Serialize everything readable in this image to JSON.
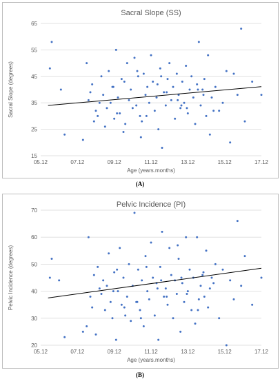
{
  "captions": {
    "a": "(A)",
    "b": "(B)"
  },
  "chart_data": [
    {
      "type": "scatter",
      "title": "Sacral Slope (SS)",
      "xlabel": "Age (years.months)",
      "ylabel": "Sacral Slope (degrees)",
      "x_ticks": [
        "05.12",
        "07.12",
        "09.12",
        "11.12",
        "13.12",
        "15.12",
        "17.12"
      ],
      "xlim": [
        5.0,
        17.0
      ],
      "y_ticks": [
        "15",
        "25",
        "35",
        "45",
        "55",
        "65"
      ],
      "ylim": [
        15,
        65
      ],
      "grid": "horizontal",
      "trendline": {
        "x": [
          5.4,
          17.0
        ],
        "y": [
          34.0,
          41.1
        ]
      },
      "marker_color": "#4472c4",
      "x": [
        5.5,
        5.6,
        6.1,
        6.3,
        7.3,
        7.5,
        7.6,
        7.7,
        7.8,
        7.9,
        8.0,
        8.1,
        8.3,
        8.4,
        8.5,
        8.6,
        8.7,
        8.8,
        8.9,
        9.0,
        9.1,
        9.2,
        9.3,
        9.4,
        9.5,
        9.6,
        9.7,
        9.8,
        9.9,
        10.0,
        10.1,
        10.2,
        10.3,
        10.4,
        10.5,
        10.6,
        10.7,
        10.8,
        10.9,
        11.0,
        11.1,
        11.2,
        11.3,
        11.4,
        11.5,
        11.6,
        11.7,
        11.8,
        11.9,
        12.0,
        12.1,
        12.2,
        12.3,
        12.4,
        12.5,
        12.6,
        12.7,
        12.8,
        12.9,
        13.0,
        13.1,
        13.2,
        13.3,
        13.4,
        13.5,
        13.6,
        13.7,
        13.8,
        13.9,
        14.0,
        14.1,
        14.2,
        14.3,
        14.5,
        14.7,
        14.9,
        15.1,
        15.3,
        15.5,
        15.7,
        15.9,
        16.1,
        16.5,
        17.0,
        8.2,
        9.15,
        10.25,
        11.35,
        12.45,
        13.55,
        14.4,
        9.55,
        10.75,
        11.85,
        12.65,
        8.95,
        10.45,
        11.55,
        12.95,
        13.85
      ],
      "y": [
        48,
        58,
        40,
        23,
        21,
        50,
        36,
        39,
        42,
        28,
        32,
        30,
        45,
        38,
        26,
        33,
        47,
        35,
        41,
        29,
        55,
        37,
        31,
        44,
        24,
        27,
        50,
        36,
        40,
        33,
        52,
        34,
        45,
        30,
        28,
        46,
        38,
        41,
        35,
        53,
        43,
        32,
        37,
        25,
        48,
        18,
        39,
        34,
        44,
        50,
        36,
        41,
        29,
        46,
        38,
        33,
        43,
        35,
        49,
        31,
        40,
        45,
        37,
        27,
        42,
        58,
        34,
        40,
        44,
        30,
        53,
        23,
        37,
        41,
        32,
        35,
        47,
        20,
        46,
        38,
        63,
        28,
        43,
        38,
        35,
        31,
        47,
        42,
        36,
        40,
        32,
        43,
        30,
        39,
        34,
        41,
        22,
        45,
        33,
        38
      ]
    },
    {
      "type": "scatter",
      "title": "Pelvic Incidence (PI)",
      "xlabel": "Age (years.months)",
      "ylabel": "Pelvic Incidence (degrees)",
      "x_ticks": [
        "05.12",
        "07.12",
        "09.12",
        "11.12",
        "13.12",
        "15.12",
        "17.12"
      ],
      "xlim": [
        5.0,
        17.0
      ],
      "y_ticks": [
        "20",
        "30",
        "40",
        "50",
        "60",
        "70"
      ],
      "ylim": [
        20,
        70
      ],
      "grid": "horizontal",
      "trendline": {
        "x": [
          5.4,
          17.0
        ],
        "y": [
          37.5,
          48.5
        ]
      },
      "marker_color": "#4472c4",
      "x": [
        5.5,
        5.6,
        6.0,
        6.3,
        7.3,
        7.5,
        7.6,
        7.7,
        7.8,
        7.9,
        8.0,
        8.1,
        8.3,
        8.4,
        8.5,
        8.6,
        8.7,
        8.8,
        8.9,
        9.0,
        9.1,
        9.2,
        9.3,
        9.4,
        9.5,
        9.6,
        9.7,
        9.8,
        9.9,
        10.0,
        10.1,
        10.2,
        10.3,
        10.4,
        10.5,
        10.6,
        10.7,
        10.8,
        10.9,
        11.0,
        11.1,
        11.2,
        11.3,
        11.4,
        11.5,
        11.6,
        11.7,
        11.8,
        11.9,
        12.0,
        12.1,
        12.2,
        12.3,
        12.4,
        12.5,
        12.6,
        12.7,
        12.8,
        12.9,
        13.0,
        13.1,
        13.2,
        13.3,
        13.4,
        13.5,
        13.6,
        13.7,
        13.8,
        13.9,
        14.0,
        14.1,
        14.2,
        14.3,
        14.5,
        14.7,
        14.9,
        15.1,
        15.3,
        15.5,
        15.7,
        15.9,
        16.1,
        16.5,
        17.0,
        8.2,
        9.15,
        10.25,
        11.35,
        12.45,
        13.55,
        14.4,
        9.55,
        10.75,
        11.85,
        12.65,
        8.95,
        10.45,
        11.55,
        12.95,
        13.85
      ],
      "y": [
        45,
        52,
        44,
        23,
        25,
        27,
        60,
        38,
        34,
        46,
        24,
        49,
        39,
        44,
        33,
        42,
        54,
        36,
        30,
        47,
        22,
        40,
        56,
        35,
        45,
        31,
        38,
        50,
        29,
        42,
        69,
        36,
        48,
        33,
        44,
        27,
        53,
        40,
        37,
        58,
        45,
        31,
        43,
        22,
        49,
        62,
        38,
        41,
        35,
        56,
        46,
        30,
        44,
        39,
        52,
        25,
        43,
        36,
        60,
        40,
        48,
        33,
        45,
        28,
        60,
        37,
        42,
        46,
        38,
        55,
        34,
        41,
        45,
        50,
        30,
        48,
        20,
        44,
        37,
        66,
        42,
        53,
        35,
        45,
        41,
        48,
        36,
        41,
        57,
        33,
        43,
        34,
        49,
        38,
        45,
        40,
        30,
        44,
        39,
        47
      ]
    }
  ]
}
